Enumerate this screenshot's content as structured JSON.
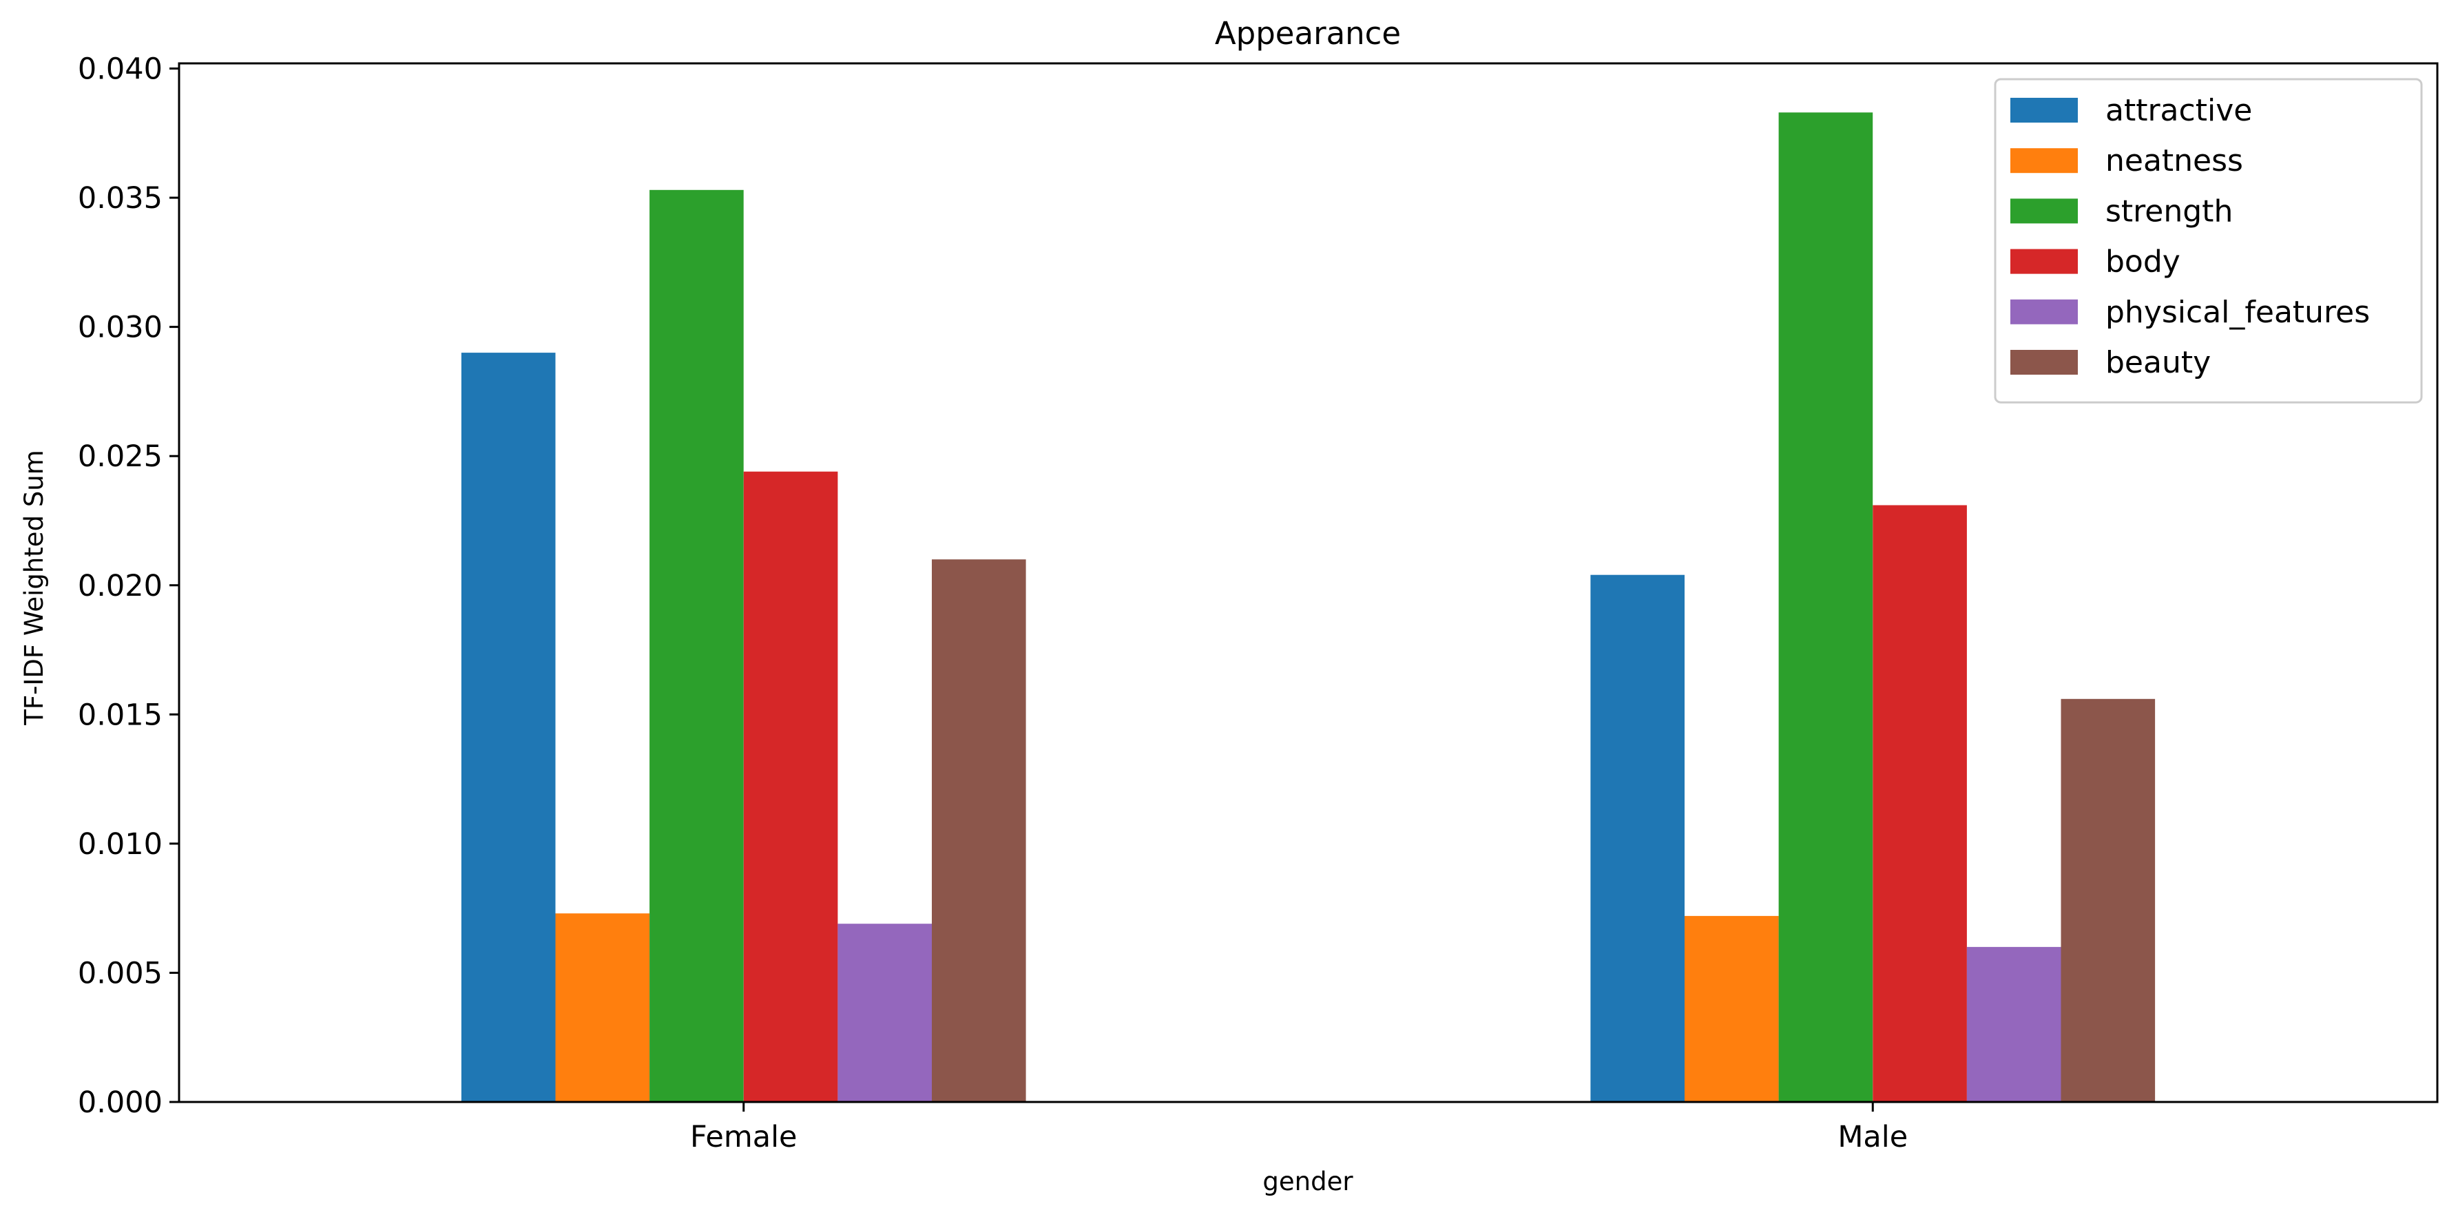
{
  "chart_data": {
    "type": "bar",
    "title": "Appearance",
    "xlabel": "gender",
    "ylabel": "TF-IDF Weighted Sum",
    "categories": [
      "Female",
      "Male"
    ],
    "ylim": [
      0.0,
      0.0402
    ],
    "yticks": [
      "0.000",
      "0.005",
      "0.010",
      "0.015",
      "0.020",
      "0.025",
      "0.030",
      "0.035",
      "0.040"
    ],
    "grid": false,
    "legend_position": "top-right",
    "series": [
      {
        "name": "attractive",
        "color": "#1f77b4",
        "values": [
          0.029,
          0.0204
        ]
      },
      {
        "name": "neatness",
        "color": "#ff7f0e",
        "values": [
          0.0073,
          0.0072
        ]
      },
      {
        "name": "strength",
        "color": "#2ca02c",
        "values": [
          0.0353,
          0.0383
        ]
      },
      {
        "name": "body",
        "color": "#d62728",
        "values": [
          0.0244,
          0.0231
        ]
      },
      {
        "name": "physical_features",
        "color": "#9467bd",
        "values": [
          0.0069,
          0.006
        ]
      },
      {
        "name": "beauty",
        "color": "#8c564b",
        "values": [
          0.021,
          0.0156
        ]
      }
    ]
  }
}
